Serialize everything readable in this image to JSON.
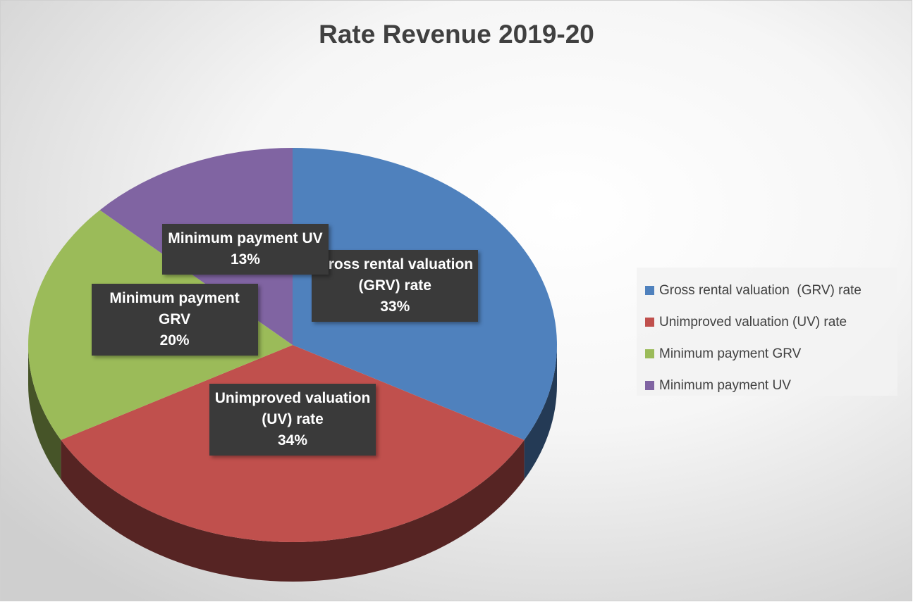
{
  "chart_data": {
    "type": "pie",
    "title": "Rate Revenue 2019-20",
    "categories": [
      "Gross rental valuation  (GRV) rate",
      "Unimproved valuation (UV) rate",
      "Minimum payment GRV",
      "Minimum payment UV"
    ],
    "values": [
      33,
      34,
      20,
      13
    ],
    "value_labels": [
      "33%",
      "34%",
      "20%",
      "13%"
    ],
    "colors": [
      "#4f81bd",
      "#c0504d",
      "#9bbb59",
      "#8064a2"
    ],
    "legend": "right"
  }
}
